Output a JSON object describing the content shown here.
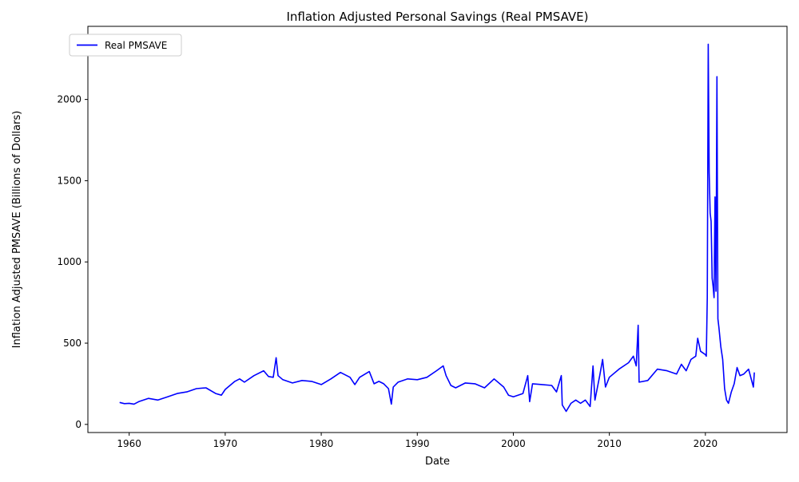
{
  "chart_data": {
    "type": "line",
    "title": "Inflation Adjusted Personal Savings (Real PMSAVE)",
    "xlabel": "Date",
    "ylabel": "Inflation Adjusted PMSAVE (Billions of Dollars)",
    "xlim": [
      1955.7,
      2028.5
    ],
    "ylim": [
      -50,
      2450
    ],
    "x_ticks": [
      1960,
      1970,
      1980,
      1990,
      2000,
      2010,
      2020
    ],
    "y_ticks": [
      0,
      500,
      1000,
      1500,
      2000
    ],
    "grid": false,
    "legend_position": "top-left",
    "series": [
      {
        "name": "Real PMSAVE",
        "color": "#0000ff",
        "points": [
          [
            1959.0,
            135
          ],
          [
            1959.5,
            128
          ],
          [
            1960.0,
            130
          ],
          [
            1960.5,
            125
          ],
          [
            1961.0,
            140
          ],
          [
            1962.0,
            160
          ],
          [
            1963.0,
            150
          ],
          [
            1964.0,
            170
          ],
          [
            1965.0,
            190
          ],
          [
            1966.0,
            200
          ],
          [
            1967.0,
            220
          ],
          [
            1968.0,
            225
          ],
          [
            1969.0,
            190
          ],
          [
            1969.6,
            180
          ],
          [
            1970.0,
            215
          ],
          [
            1971.0,
            265
          ],
          [
            1971.5,
            280
          ],
          [
            1972.0,
            260
          ],
          [
            1973.0,
            300
          ],
          [
            1974.0,
            330
          ],
          [
            1974.5,
            295
          ],
          [
            1975.0,
            290
          ],
          [
            1975.3,
            410
          ],
          [
            1975.5,
            300
          ],
          [
            1976.0,
            275
          ],
          [
            1977.0,
            255
          ],
          [
            1978.0,
            270
          ],
          [
            1979.0,
            265
          ],
          [
            1980.0,
            245
          ],
          [
            1981.0,
            280
          ],
          [
            1982.0,
            320
          ],
          [
            1983.0,
            290
          ],
          [
            1983.5,
            245
          ],
          [
            1984.0,
            290
          ],
          [
            1985.0,
            325
          ],
          [
            1985.5,
            250
          ],
          [
            1986.0,
            265
          ],
          [
            1986.5,
            250
          ],
          [
            1987.0,
            220
          ],
          [
            1987.3,
            125
          ],
          [
            1987.5,
            230
          ],
          [
            1988.0,
            260
          ],
          [
            1989.0,
            280
          ],
          [
            1990.0,
            275
          ],
          [
            1991.0,
            290
          ],
          [
            1992.0,
            330
          ],
          [
            1992.7,
            360
          ],
          [
            1993.0,
            300
          ],
          [
            1993.5,
            240
          ],
          [
            1994.0,
            225
          ],
          [
            1995.0,
            255
          ],
          [
            1996.0,
            250
          ],
          [
            1997.0,
            225
          ],
          [
            1998.0,
            280
          ],
          [
            1999.0,
            230
          ],
          [
            1999.5,
            180
          ],
          [
            2000.0,
            170
          ],
          [
            2001.0,
            190
          ],
          [
            2001.5,
            300
          ],
          [
            2001.7,
            140
          ],
          [
            2002.0,
            250
          ],
          [
            2003.0,
            245
          ],
          [
            2004.0,
            240
          ],
          [
            2004.5,
            200
          ],
          [
            2005.0,
            300
          ],
          [
            2005.1,
            120
          ],
          [
            2005.5,
            80
          ],
          [
            2006.0,
            130
          ],
          [
            2006.5,
            150
          ],
          [
            2007.0,
            130
          ],
          [
            2007.5,
            150
          ],
          [
            2008.0,
            110
          ],
          [
            2008.3,
            360
          ],
          [
            2008.5,
            150
          ],
          [
            2009.0,
            300
          ],
          [
            2009.3,
            400
          ],
          [
            2009.6,
            230
          ],
          [
            2010.0,
            290
          ],
          [
            2011.0,
            340
          ],
          [
            2012.0,
            380
          ],
          [
            2012.5,
            420
          ],
          [
            2012.8,
            360
          ],
          [
            2013.0,
            610
          ],
          [
            2013.1,
            260
          ],
          [
            2014.0,
            270
          ],
          [
            2015.0,
            340
          ],
          [
            2016.0,
            330
          ],
          [
            2017.0,
            310
          ],
          [
            2017.5,
            370
          ],
          [
            2018.0,
            330
          ],
          [
            2018.5,
            400
          ],
          [
            2019.0,
            420
          ],
          [
            2019.2,
            530
          ],
          [
            2019.5,
            450
          ],
          [
            2020.0,
            430
          ],
          [
            2020.1,
            420
          ],
          [
            2020.2,
            780
          ],
          [
            2020.3,
            2340
          ],
          [
            2020.4,
            1550
          ],
          [
            2020.5,
            1300
          ],
          [
            2020.6,
            1250
          ],
          [
            2020.7,
            900
          ],
          [
            2020.8,
            850
          ],
          [
            2020.9,
            780
          ],
          [
            2021.0,
            1400
          ],
          [
            2021.1,
            820
          ],
          [
            2021.2,
            2140
          ],
          [
            2021.3,
            650
          ],
          [
            2021.4,
            600
          ],
          [
            2021.6,
            480
          ],
          [
            2021.8,
            400
          ],
          [
            2022.0,
            220
          ],
          [
            2022.2,
            150
          ],
          [
            2022.4,
            130
          ],
          [
            2022.7,
            200
          ],
          [
            2023.0,
            250
          ],
          [
            2023.3,
            350
          ],
          [
            2023.6,
            300
          ],
          [
            2024.0,
            310
          ],
          [
            2024.5,
            340
          ],
          [
            2025.0,
            230
          ],
          [
            2025.1,
            320
          ]
        ]
      }
    ]
  }
}
